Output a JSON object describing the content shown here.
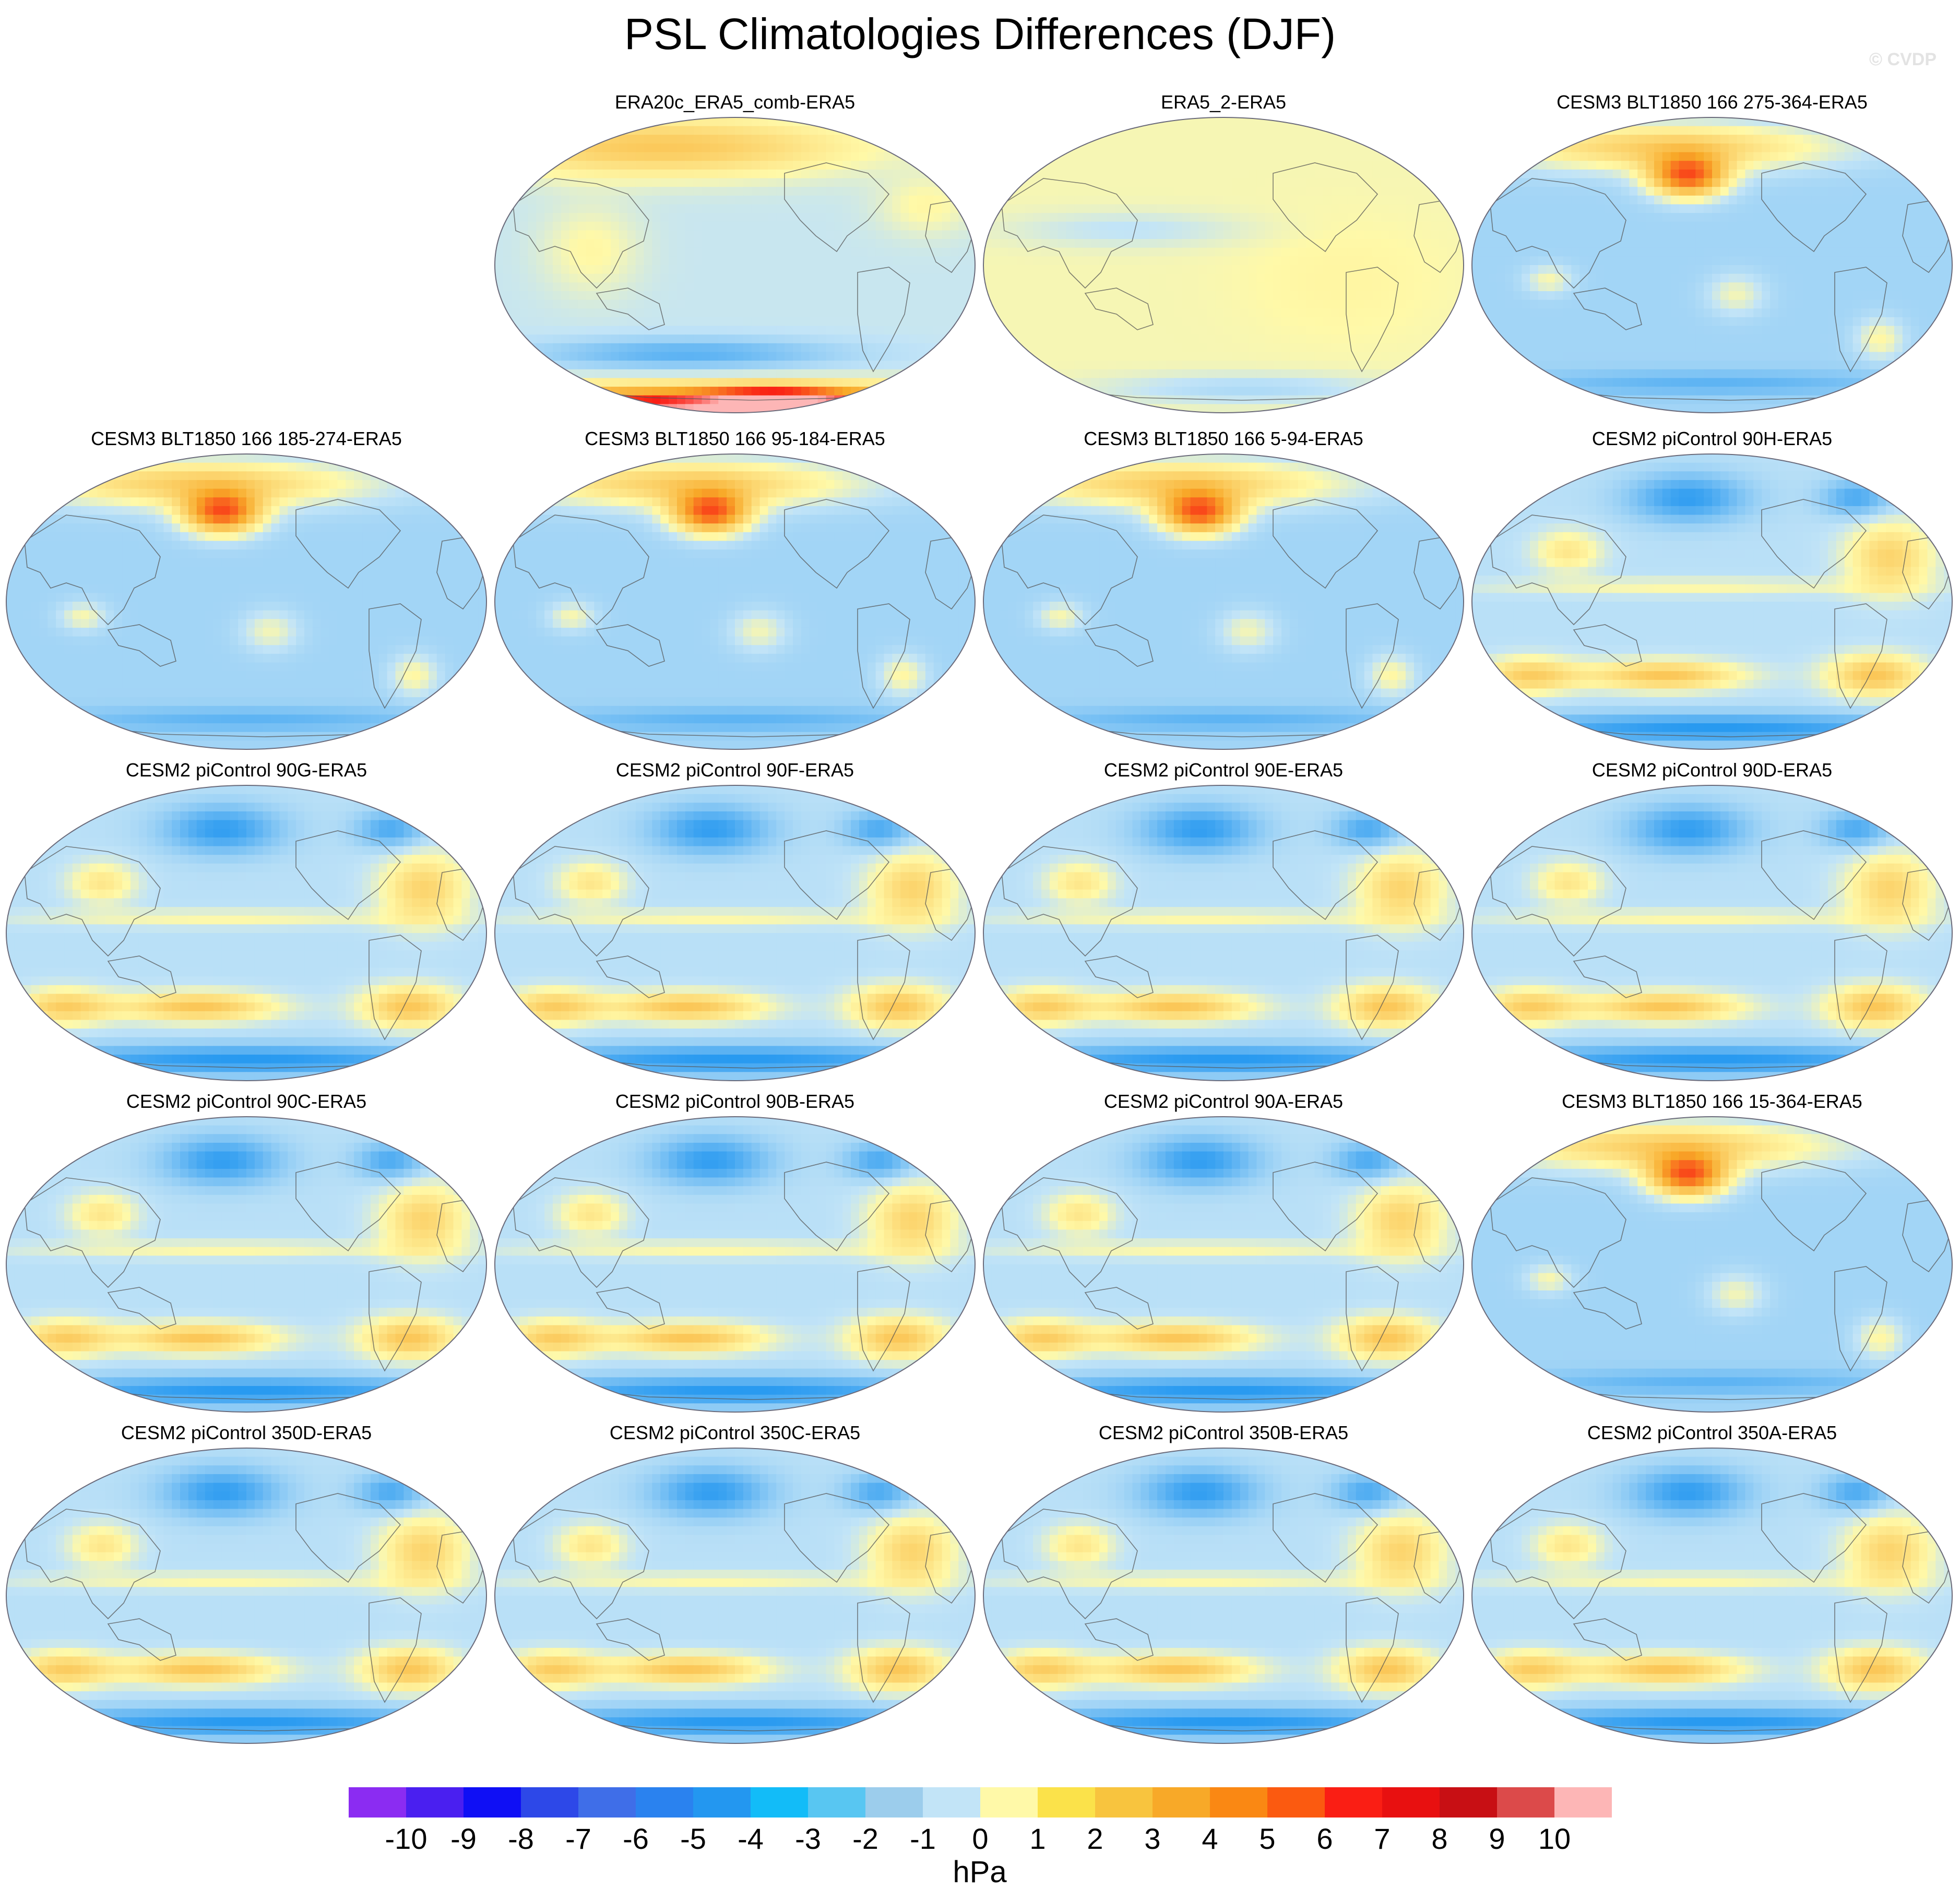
{
  "title": "PSL Climatologies Differences (DJF)",
  "watermark": "© CVDP",
  "units": "hPa",
  "colorbar": {
    "ticks": [
      "-10",
      "-9",
      "-8",
      "-7",
      "-6",
      "-5",
      "-4",
      "-3",
      "-2",
      "-1",
      "0",
      "1",
      "2",
      "3",
      "4",
      "5",
      "6",
      "7",
      "8",
      "9",
      "10"
    ],
    "colors": [
      "#8b2cf2",
      "#4a1ff0",
      "#0f0ff5",
      "#2d48e8",
      "#3f6ee8",
      "#2a82ef",
      "#2397f0",
      "#12bcf8",
      "#58c6f2",
      "#9ccdec",
      "#c2e4f7",
      "#fff9a8",
      "#fbe24a",
      "#f8c43e",
      "#f8a928",
      "#fa8813",
      "#fb5a10",
      "#fa1e14",
      "#e81010",
      "#c80f14",
      "#dc4a4a",
      "#fdb6b6"
    ]
  },
  "color_scale": {
    "anchors": [
      "#8b2cf2",
      "#2d48e8",
      "#2397f0",
      "#c2e4f7",
      "#fff9a8",
      "#f8a928",
      "#fa1e14",
      "#fdb6b6"
    ]
  },
  "panels": [
    {
      "title": "ERA20c_ERA5_comb-ERA5",
      "style": "era20c"
    },
    {
      "title": "ERA5_2-ERA5",
      "style": "era5"
    },
    {
      "title": "CESM3 BLT1850 166 275-364-ERA5",
      "style": "cesm3"
    },
    {
      "title": "CESM3 BLT1850 166 185-274-ERA5",
      "style": "cesm3"
    },
    {
      "title": "CESM3 BLT1850 166 95-184-ERA5",
      "style": "cesm3"
    },
    {
      "title": "CESM3 BLT1850 166 5-94-ERA5",
      "style": "cesm3"
    },
    {
      "title": "CESM2 piControl 90H-ERA5",
      "style": "cesm2"
    },
    {
      "title": "CESM2 piControl 90G-ERA5",
      "style": "cesm2"
    },
    {
      "title": "CESM2 piControl 90F-ERA5",
      "style": "cesm2"
    },
    {
      "title": "CESM2 piControl 90E-ERA5",
      "style": "cesm2"
    },
    {
      "title": "CESM2 piControl 90D-ERA5",
      "style": "cesm2"
    },
    {
      "title": "CESM2 piControl 90C-ERA5",
      "style": "cesm2"
    },
    {
      "title": "CESM2 piControl 90B-ERA5",
      "style": "cesm2"
    },
    {
      "title": "CESM2 piControl 90A-ERA5",
      "style": "cesm2"
    },
    {
      "title": "CESM3 BLT1850 166 15-364-ERA5",
      "style": "cesm3"
    },
    {
      "title": "CESM2 piControl 350D-ERA5",
      "style": "cesm2"
    },
    {
      "title": "CESM2 piControl 350C-ERA5",
      "style": "cesm2"
    },
    {
      "title": "CESM2 piControl 350B-ERA5",
      "style": "cesm2"
    },
    {
      "title": "CESM2 piControl 350A-ERA5",
      "style": "cesm2"
    }
  ]
}
